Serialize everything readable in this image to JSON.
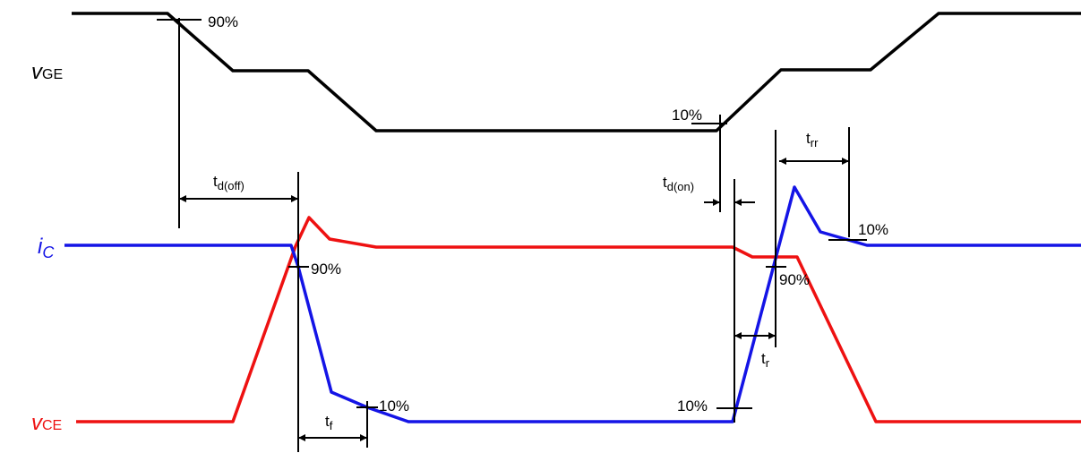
{
  "signals": {
    "vge": {
      "main": "v",
      "sub": "GE",
      "color": "#000000"
    },
    "ic": {
      "main": "i",
      "sub": "C",
      "color": "#1414e6"
    },
    "vce": {
      "main": "v",
      "sub": "CE",
      "color": "#ee1111"
    }
  },
  "percent_labels": {
    "vge_90": "90%",
    "vge_10": "10%",
    "ic_90_off": "90%",
    "ic_10_off": "10%",
    "ic_10_on": "10%",
    "ic_90_on": "90%",
    "ic_10_rr": "10%"
  },
  "timings": {
    "td_off": {
      "main": "t",
      "sub": "d(off)"
    },
    "tf": {
      "main": "t",
      "sub": "f"
    },
    "td_on": {
      "main": "t",
      "sub": "d(on)"
    },
    "tr": {
      "main": "t",
      "sub": "r"
    },
    "trr": {
      "main": "t",
      "sub": "rr"
    }
  }
}
